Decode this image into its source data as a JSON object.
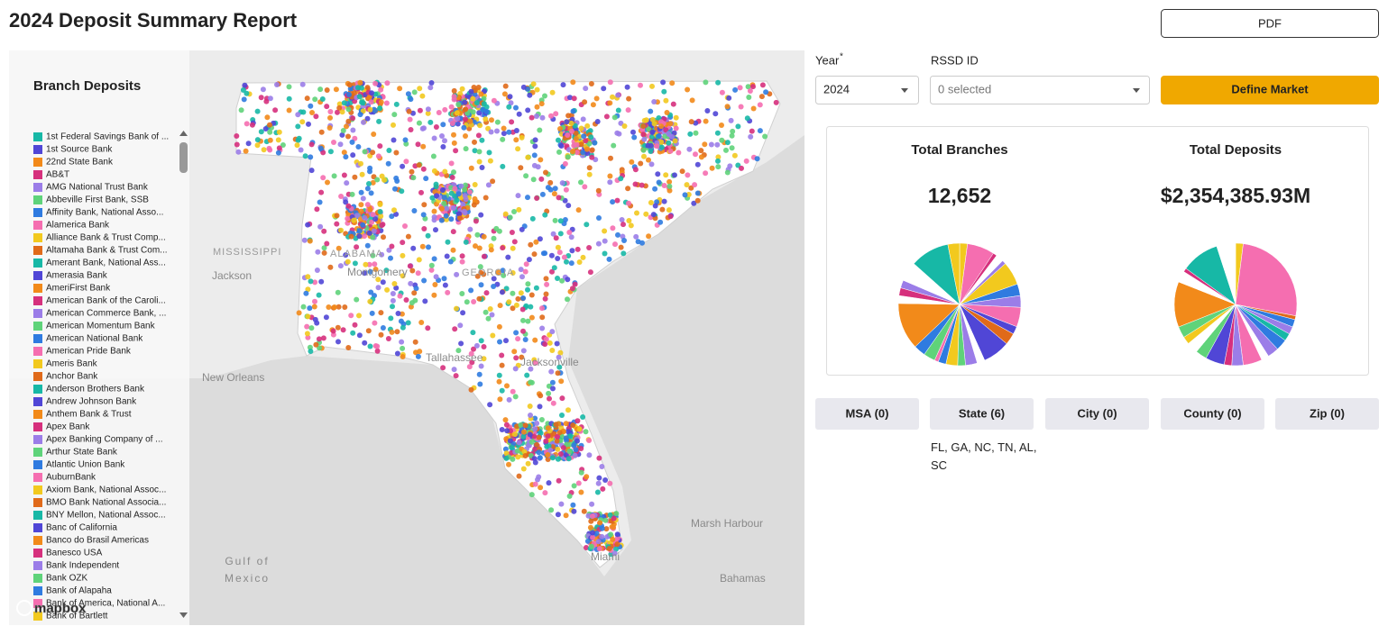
{
  "header": {
    "title": "2024 Deposit Summary Report",
    "pdf_button": "PDF"
  },
  "map": {
    "legend_title": "Branch Deposits",
    "legend_colors": [
      "#17b8a6",
      "#5046d6",
      "#f28a1a",
      "#d6307d",
      "#9b7de8",
      "#5fd37a",
      "#2f7be0",
      "#f56eb0",
      "#f2c91e",
      "#e06a1a"
    ],
    "legend_items": [
      "1st Federal Savings Bank of ...",
      "1st Source Bank",
      "22nd State Bank",
      "AB&T",
      "AMG National Trust Bank",
      "Abbeville First Bank, SSB",
      "Affinity Bank, National Asso...",
      "Alamerica Bank",
      "Alliance Bank & Trust Comp...",
      "Altamaha Bank & Trust Com...",
      "Amerant Bank, National Ass...",
      "Amerasia Bank",
      "AmeriFirst Bank",
      "American Bank of the Caroli...",
      "American Commerce Bank, ...",
      "American Momentum Bank",
      "American National Bank",
      "American Pride Bank",
      "Ameris Bank",
      "Anchor Bank",
      "Anderson Brothers Bank",
      "Andrew Johnson Bank",
      "Anthem Bank & Trust",
      "Apex Bank",
      "Apex Banking Company of ...",
      "Arthur State Bank",
      "Atlantic Union Bank",
      "AuburnBank",
      "Axiom Bank, National Assoc...",
      "BMO Bank National Associa...",
      "BNY Mellon, National Assoc...",
      "Banc of California",
      "Banco do Brasil Americas",
      "Banesco USA",
      "Bank Independent",
      "Bank OZK",
      "Bank of Alapaha",
      "Bank of America, National A...",
      "Bank of Bartlett"
    ],
    "labels": [
      "MISSISSIPPI",
      "Jackson",
      "ALABAMA",
      "Montgomery",
      "GEORGIA",
      "New Orleans",
      "Tallahassee",
      "Jacksonville",
      "Marsh Harbour",
      "Gulf of",
      "Mexico",
      "Miami",
      "Bahamas"
    ],
    "attribution": "mapbox"
  },
  "filters": {
    "year_label": "Year",
    "required_mark": "*",
    "year_value": "2024",
    "rssd_label": "RSSD ID",
    "rssd_value": "0 selected",
    "define_button": "Define Market"
  },
  "stats": [
    {
      "title": "Total Branches",
      "value": "12,652",
      "pie": {
        "values": [
          2,
          7,
          1,
          2,
          1,
          6,
          3,
          3,
          5,
          2,
          3,
          7,
          2,
          3,
          2,
          3,
          2,
          1,
          3,
          3,
          12,
          2,
          2,
          2,
          5,
          10,
          3
        ],
        "colors": [
          "#f2c91e",
          "#f56eb0",
          "#d6307d",
          "#ffffff",
          "#9b7de8",
          "#f2c91e",
          "#2f7be0",
          "#9b7de8",
          "#f56eb0",
          "#5046d6",
          "#e06a1a",
          "#5046d6",
          "#ffffff",
          "#9b7de8",
          "#5fd37a",
          "#f2c91e",
          "#2f7be0",
          "#f56eb0",
          "#5fd37a",
          "#2f7be0",
          "#f28a1a",
          "#ffffff",
          "#d6307d",
          "#9b7de8",
          "#ffffff",
          "#17b8a6",
          "#f2c91e"
        ]
      }
    },
    {
      "title": "Total Deposits",
      "value": "$2,354,385.93M",
      "pie": {
        "values": [
          2,
          26,
          1,
          2,
          2,
          2,
          3,
          3,
          2,
          5,
          3,
          2,
          5,
          3,
          3,
          2,
          3,
          12,
          3,
          1,
          10,
          2,
          3
        ],
        "colors": [
          "#f2c91e",
          "#f56eb0",
          "#e06a1a",
          "#2f7be0",
          "#9b7de8",
          "#17b8a6",
          "#2f7be0",
          "#9b7de8",
          "#ffffff",
          "#f56eb0",
          "#9b7de8",
          "#d6307d",
          "#5046d6",
          "#5fd37a",
          "#ffffff",
          "#f2c91e",
          "#5fd37a",
          "#f28a1a",
          "#ffffff",
          "#d6307d",
          "#17b8a6",
          "#ffffff",
          "#ffffff"
        ]
      }
    }
  ],
  "tabs": [
    "MSA (0)",
    "State (6)",
    "City (0)",
    "County (0)",
    "Zip (0)"
  ],
  "selected_states": "FL, GA, NC, TN, AL, SC"
}
